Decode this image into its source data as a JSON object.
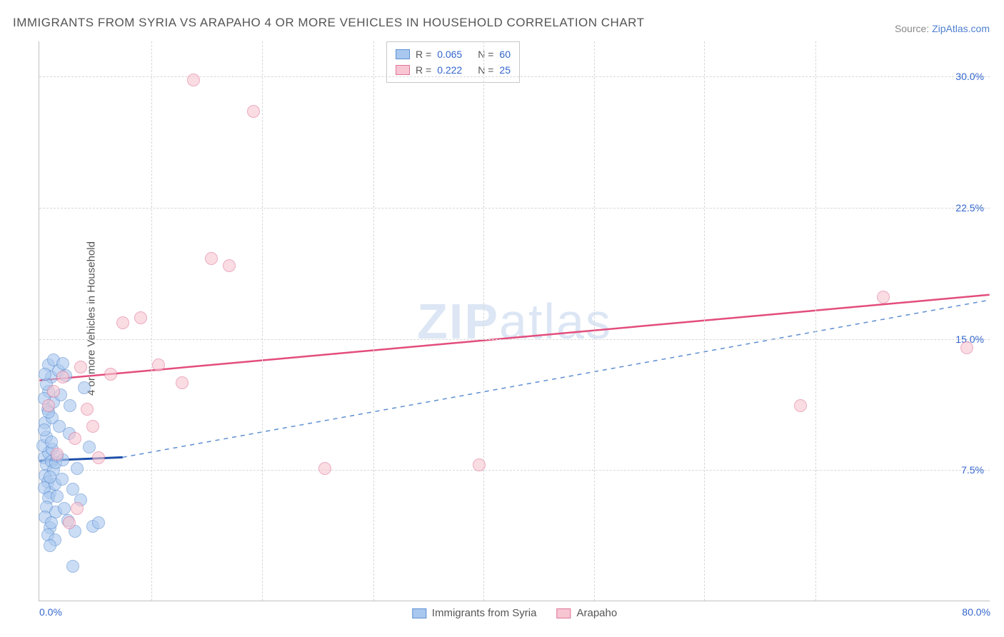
{
  "title": "IMMIGRANTS FROM SYRIA VS ARAPAHO 4 OR MORE VEHICLES IN HOUSEHOLD CORRELATION CHART",
  "source_label": "Source: ",
  "source_link": "ZipAtlas.com",
  "ylabel": "4 or more Vehicles in Household",
  "watermark_a": "ZIP",
  "watermark_b": "atlas",
  "chart": {
    "type": "scatter",
    "xlim": [
      0,
      80
    ],
    "ylim": [
      0,
      32
    ],
    "xtick_left": "0.0%",
    "xtick_right": "80.0%",
    "xtick_positions_pct": [
      0,
      11.8,
      23.4,
      35.1,
      46.7,
      58.3,
      69.9,
      81.6
    ],
    "yticks": [
      {
        "v": 7.5,
        "label": "7.5%"
      },
      {
        "v": 15.0,
        "label": "15.0%"
      },
      {
        "v": 22.5,
        "label": "22.5%"
      },
      {
        "v": 30.0,
        "label": "30.0%"
      }
    ],
    "background_color": "#ffffff",
    "grid_color": "#d8d8d8",
    "series": [
      {
        "name": "Immigrants from Syria",
        "fill": "#a9c8ef",
        "stroke": "#5d8fd1",
        "marker_radius": 9,
        "fill_opacity": 0.6,
        "R": "0.065",
        "N": "60",
        "trend": {
          "x1": 0,
          "y1": 8.0,
          "x2": 7,
          "y2": 8.2,
          "color": "#1f4fa8",
          "width": 3,
          "dash": "none"
        },
        "trend_ext": {
          "x1": 7,
          "y1": 8.2,
          "x2": 80,
          "y2": 17.2,
          "color": "#5d8fd1",
          "width": 1.5,
          "dash": "6,6"
        },
        "points": [
          [
            0.4,
            8.2
          ],
          [
            0.6,
            7.8
          ],
          [
            0.8,
            8.5
          ],
          [
            0.5,
            7.2
          ],
          [
            1.0,
            8.0
          ],
          [
            0.7,
            6.8
          ],
          [
            1.2,
            7.5
          ],
          [
            0.3,
            8.9
          ],
          [
            0.9,
            6.2
          ],
          [
            1.4,
            7.9
          ],
          [
            0.6,
            9.4
          ],
          [
            1.1,
            8.7
          ],
          [
            0.4,
            6.5
          ],
          [
            0.8,
            5.9
          ],
          [
            1.0,
            9.1
          ],
          [
            0.5,
            10.2
          ],
          [
            1.3,
            6.7
          ],
          [
            0.7,
            11.0
          ],
          [
            0.9,
            7.1
          ],
          [
            0.4,
            9.8
          ],
          [
            1.5,
            8.3
          ],
          [
            0.6,
            5.4
          ],
          [
            1.1,
            10.5
          ],
          [
            0.8,
            12.0
          ],
          [
            1.2,
            11.4
          ],
          [
            0.5,
            4.8
          ],
          [
            0.9,
            4.2
          ],
          [
            1.4,
            5.1
          ],
          [
            0.7,
            3.8
          ],
          [
            1.0,
            12.8
          ],
          [
            1.6,
            13.2
          ],
          [
            0.8,
            13.5
          ],
          [
            1.8,
            11.8
          ],
          [
            2.2,
            12.9
          ],
          [
            2.0,
            8.1
          ],
          [
            2.5,
            9.6
          ],
          [
            1.9,
            7.0
          ],
          [
            2.8,
            6.4
          ],
          [
            3.2,
            7.6
          ],
          [
            3.5,
            5.8
          ],
          [
            1.7,
            10.0
          ],
          [
            2.1,
            5.3
          ],
          [
            2.6,
            11.2
          ],
          [
            0.4,
            11.6
          ],
          [
            0.6,
            12.4
          ],
          [
            1.0,
            4.5
          ],
          [
            1.3,
            3.5
          ],
          [
            0.8,
            10.8
          ],
          [
            2.4,
            4.6
          ],
          [
            3.0,
            4.0
          ],
          [
            3.8,
            12.2
          ],
          [
            4.2,
            8.8
          ],
          [
            4.5,
            4.3
          ],
          [
            5.0,
            4.5
          ],
          [
            1.2,
            13.8
          ],
          [
            0.5,
            13.0
          ],
          [
            2.0,
            13.6
          ],
          [
            1.5,
            6.0
          ],
          [
            0.9,
            3.2
          ],
          [
            2.8,
            2.0
          ]
        ]
      },
      {
        "name": "Arapaho",
        "fill": "#f7c6d2",
        "stroke": "#e07598",
        "marker_radius": 9,
        "fill_opacity": 0.6,
        "R": "0.222",
        "N": "25",
        "trend": {
          "x1": 0,
          "y1": 12.6,
          "x2": 80,
          "y2": 17.5,
          "color": "#e34d7c",
          "width": 2.5,
          "dash": "none"
        },
        "points": [
          [
            0.8,
            11.2
          ],
          [
            1.2,
            12.0
          ],
          [
            1.5,
            8.4
          ],
          [
            2.0,
            12.8
          ],
          [
            2.5,
            4.5
          ],
          [
            3.0,
            9.3
          ],
          [
            3.5,
            13.4
          ],
          [
            4.0,
            11.0
          ],
          [
            4.5,
            10.0
          ],
          [
            5.0,
            8.2
          ],
          [
            6.0,
            13.0
          ],
          [
            7.0,
            15.9
          ],
          [
            8.5,
            16.2
          ],
          [
            10.0,
            13.5
          ],
          [
            12.0,
            12.5
          ],
          [
            13.0,
            29.8
          ],
          [
            14.5,
            19.6
          ],
          [
            16.0,
            19.2
          ],
          [
            18.0,
            28.0
          ],
          [
            24.0,
            7.6
          ],
          [
            37.0,
            7.8
          ],
          [
            64.0,
            11.2
          ],
          [
            71.0,
            17.4
          ],
          [
            78.0,
            14.5
          ],
          [
            3.2,
            5.3
          ]
        ]
      }
    ]
  },
  "legend": {
    "r_label": "R =",
    "n_label": "N ="
  }
}
